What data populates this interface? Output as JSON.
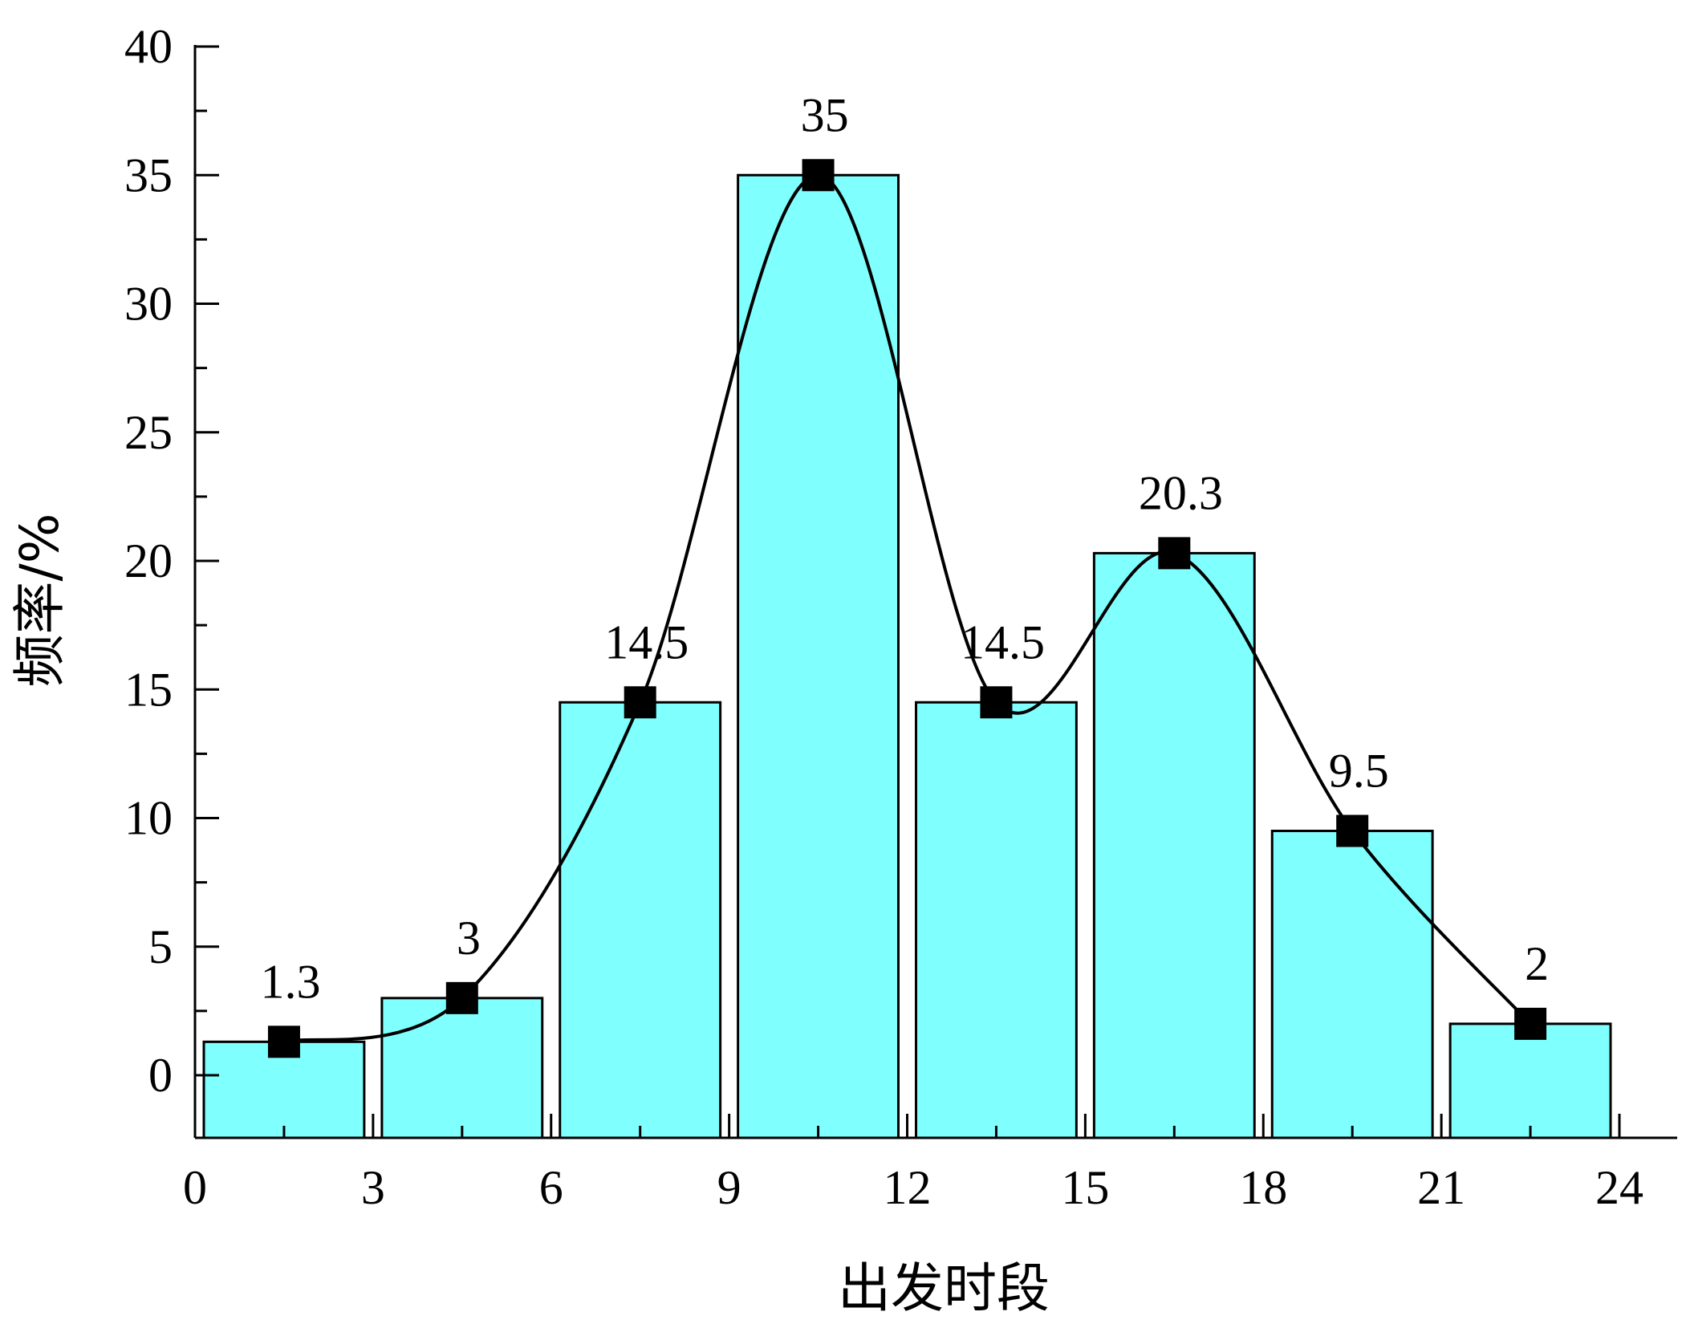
{
  "chart_data": {
    "type": "bar",
    "title": "",
    "xlabel": "出发时段",
    "ylabel": "频率/%",
    "xlim": [
      0,
      24
    ],
    "ylim": [
      -2.5,
      40
    ],
    "x_ticks": [
      0,
      3,
      6,
      9,
      12,
      15,
      18,
      21,
      24
    ],
    "y_ticks": [
      0,
      5,
      10,
      15,
      20,
      25,
      30,
      35,
      40
    ],
    "bins": [
      [
        0,
        3
      ],
      [
        3,
        6
      ],
      [
        6,
        9
      ],
      [
        9,
        12
      ],
      [
        12,
        15
      ],
      [
        15,
        18
      ],
      [
        18,
        21
      ],
      [
        21,
        24
      ]
    ],
    "bin_centers": [
      1.5,
      4.5,
      7.5,
      10.5,
      13.5,
      16.5,
      19.5,
      22.5
    ],
    "values": [
      1.3,
      3,
      14.5,
      35,
      14.5,
      20.3,
      9.5,
      2
    ],
    "data_labels": [
      "1.3",
      "3",
      "14.5",
      "35",
      "14.5",
      "20.3",
      "9.5",
      "2"
    ],
    "bar_color": "#80FFFF",
    "line_color": "#000000",
    "marker": "square",
    "grid": false,
    "legend": "none"
  }
}
